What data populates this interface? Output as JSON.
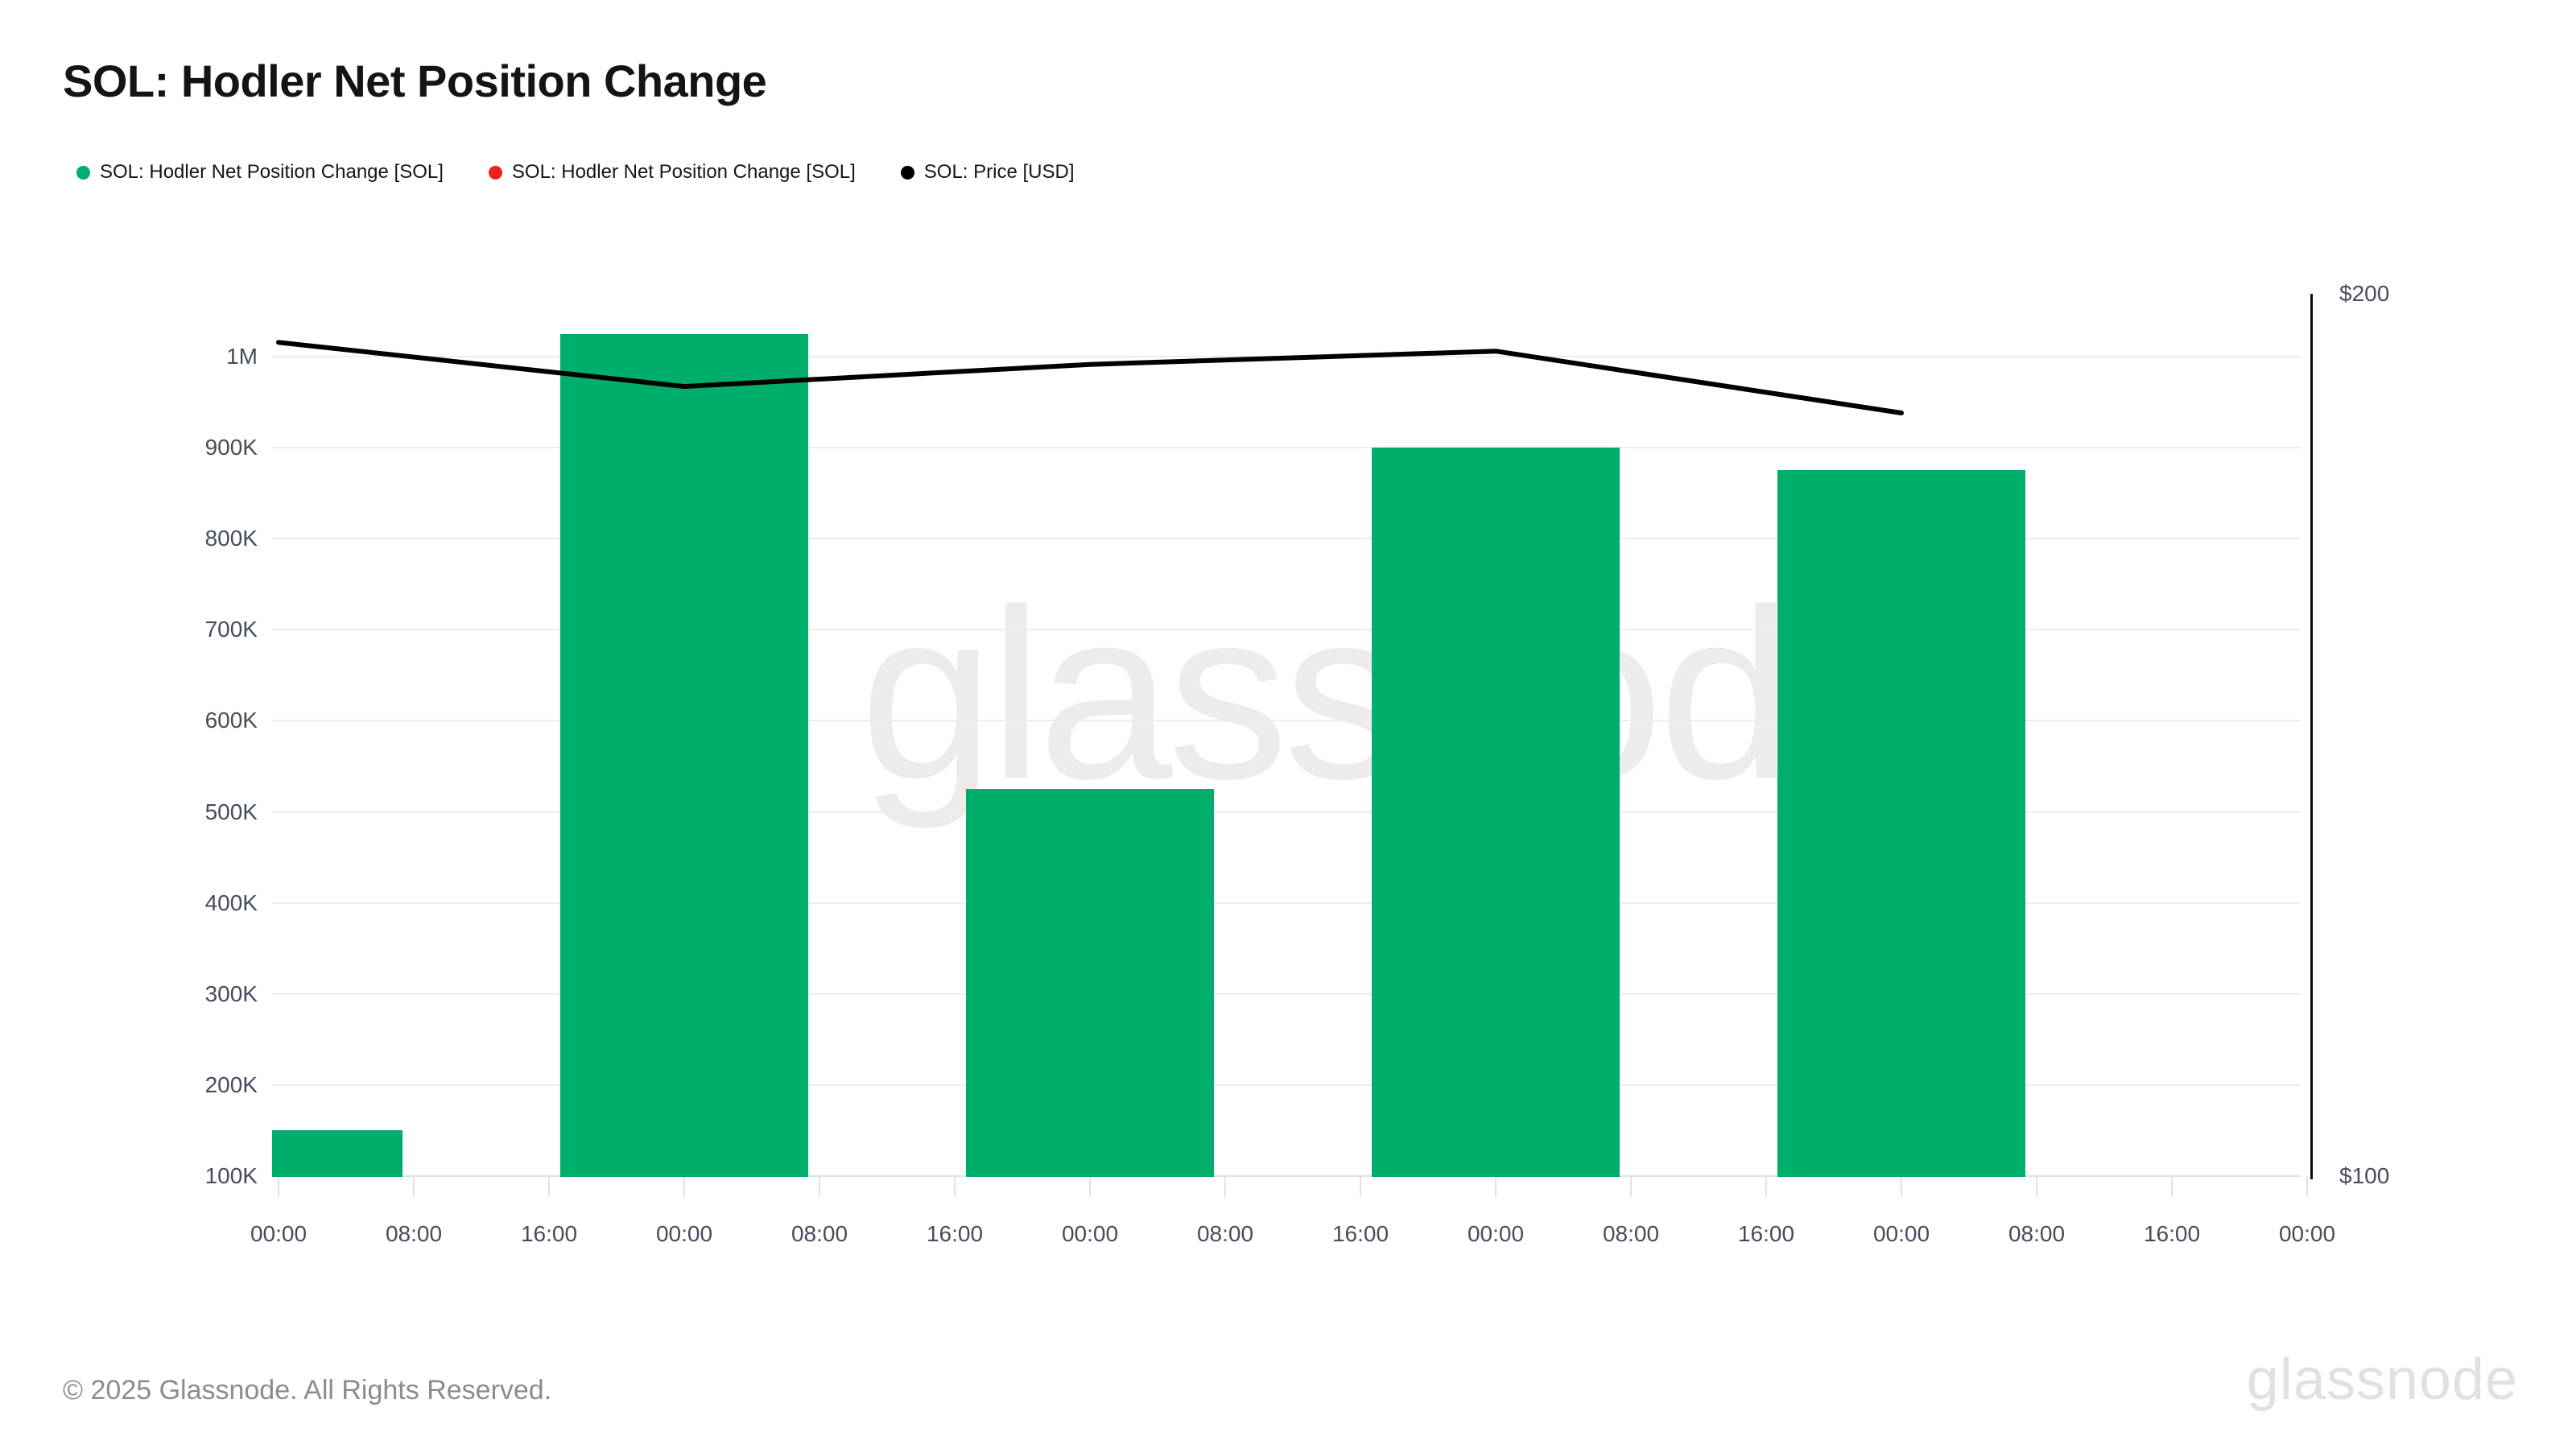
{
  "header": {
    "title": "SOL: Hodler Net Position Change"
  },
  "legend": {
    "items": [
      {
        "label": "SOL: Hodler Net Position Change [SOL]",
        "color": "#00ae6c"
      },
      {
        "label": "SOL: Hodler Net Position Change [SOL]",
        "color": "#f01d23"
      },
      {
        "label": "SOL: Price [USD]",
        "color": "#000000"
      }
    ]
  },
  "chart_data": {
    "type": "bar",
    "title": "SOL: Hodler Net Position Change",
    "x_tick_labels": [
      "00:00",
      "08:00",
      "16:00",
      "00:00",
      "08:00",
      "16:00",
      "00:00",
      "08:00",
      "16:00",
      "00:00",
      "08:00",
      "16:00",
      "00:00",
      "08:00",
      "16:00",
      "00:00"
    ],
    "series": [
      {
        "name": "SOL: Hodler Net Position Change [SOL]",
        "type": "bar",
        "axis": "left",
        "color": "#00ae6c",
        "bar_width_ticks": 1.83,
        "points": [
          {
            "x_index": 0,
            "value": 150000
          },
          {
            "x_index": 3,
            "value": 1025000
          },
          {
            "x_index": 6,
            "value": 525000
          },
          {
            "x_index": 9,
            "value": 900000
          },
          {
            "x_index": 12,
            "value": 875000
          }
        ]
      },
      {
        "name": "SOL: Price [USD]",
        "type": "line",
        "axis": "right",
        "color": "#000000",
        "points": [
          {
            "x_index": 0,
            "value": 194.5
          },
          {
            "x_index": 3,
            "value": 189.5
          },
          {
            "x_index": 6,
            "value": 192.0
          },
          {
            "x_index": 9,
            "value": 193.5
          },
          {
            "x_index": 12,
            "value": 186.5
          }
        ]
      }
    ],
    "left_axis": {
      "min": 100000,
      "max": 1000000,
      "grid": true,
      "ticks": [
        {
          "label": "1M",
          "value": 1000000
        },
        {
          "label": "900K",
          "value": 900000
        },
        {
          "label": "800K",
          "value": 800000
        },
        {
          "label": "700K",
          "value": 700000
        },
        {
          "label": "600K",
          "value": 600000
        },
        {
          "label": "500K",
          "value": 500000
        },
        {
          "label": "400K",
          "value": 400000
        },
        {
          "label": "300K",
          "value": 300000
        },
        {
          "label": "200K",
          "value": 200000
        },
        {
          "label": "100K",
          "value": 100000
        }
      ]
    },
    "right_axis": {
      "min": 100,
      "max": 200,
      "ticks": [
        {
          "label": "$200",
          "value": 200
        },
        {
          "label": "$100",
          "value": 100
        }
      ]
    },
    "legend_position": "top-left"
  },
  "watermark": {
    "text": "glassnode"
  },
  "footer": {
    "copyright": "© 2025 Glassnode. All Rights Reserved.",
    "brand": "glassnode"
  }
}
